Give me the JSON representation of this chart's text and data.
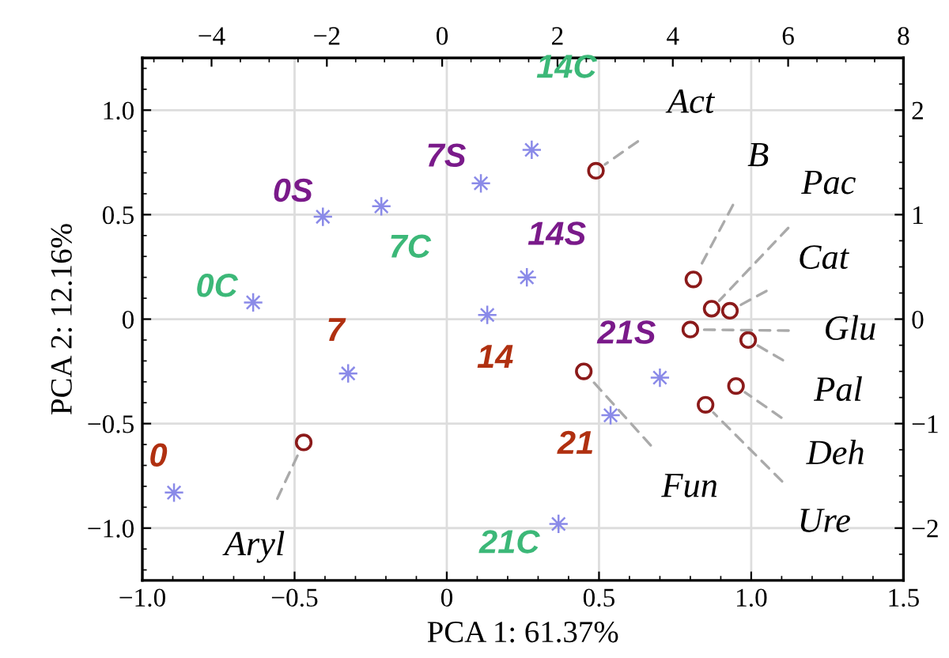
{
  "chart_data": {
    "type": "scatter",
    "xlabel": "PCA 1: 61.37%",
    "ylabel": "PCA 2: 12.16%",
    "xlim": [
      -1.0,
      1.5
    ],
    "xticks": [
      {
        "value": -1.0,
        "label": "−1.0"
      },
      {
        "value": -0.5,
        "label": "−0.5"
      },
      0,
      {
        "value": 0.5,
        "label": "0.5"
      },
      {
        "value": 1.0,
        "label": "1.0"
      },
      {
        "value": 1.5,
        "label": "1.5"
      }
    ],
    "ylim": [
      -1.25,
      1.25
    ],
    "yticks": [
      {
        "value": -1.0,
        "label": "−1.0"
      },
      {
        "value": -0.5,
        "label": "−0.5"
      },
      0,
      {
        "value": 0.5,
        "label": "0.5"
      },
      {
        "value": 1.0,
        "label": "1.0"
      }
    ],
    "x2lim": [
      -5.2,
      8.0
    ],
    "x2ticks": [
      {
        "value": -4,
        "label": "−4"
      },
      {
        "value": -2,
        "label": "−2"
      },
      0,
      2,
      4,
      6,
      8
    ],
    "y2lim": [
      -2.5,
      2.5
    ],
    "y2ticks": [
      {
        "value": -2,
        "label": "−2"
      },
      {
        "value": -1,
        "label": "−1"
      },
      0,
      1,
      2
    ],
    "grid": true,
    "series": [
      {
        "color": "#8b1a1a",
        "marker": "circle",
        "x": [
          -0.47,
          0.49,
          0.81,
          0.87,
          0.93,
          0.8,
          0.99,
          0.95,
          0.85,
          0.45
        ],
        "values": [
          -0.59,
          0.71,
          0.19,
          0.05,
          0.04,
          -0.05,
          -0.1,
          -0.32,
          -0.41,
          -0.25
        ]
      },
      {
        "color": "#8a8ae8",
        "marker": "cross",
        "x": [
          -0.896,
          -0.324,
          0.133,
          0.538,
          -0.636,
          -0.215,
          0.279,
          0.367,
          -0.407,
          0.112,
          0.263,
          0.7
        ],
        "values": [
          -0.83,
          -0.26,
          0.02,
          -0.46,
          0.08,
          0.54,
          0.81,
          -0.98,
          0.49,
          0.65,
          0.2,
          -0.28
        ]
      }
    ],
    "annotations": [
      {
        "text": "Aryl",
        "x": -0.47,
        "y": -0.59
      },
      {
        "text": "Act",
        "x": 0.49,
        "y": 0.71
      },
      {
        "text": "B",
        "x": 0.81,
        "y": 0.19
      },
      {
        "text": "Pac",
        "x": 0.87,
        "y": 0.05
      },
      {
        "text": "Cat",
        "x": 0.93,
        "y": 0.04
      },
      {
        "text": "Glu",
        "x": 0.8,
        "y": -0.05
      },
      {
        "text": "Pal",
        "x": 0.99,
        "y": -0.1
      },
      {
        "text": "Deh",
        "x": 0.95,
        "y": -0.32
      },
      {
        "text": "Ure",
        "x": 0.85,
        "y": -0.41
      },
      {
        "text": "Fun",
        "x": 0.45,
        "y": -0.25
      },
      {
        "text": "0",
        "x": -0.896,
        "y": -0.83
      },
      {
        "text": "7",
        "x": -0.324,
        "y": -0.26
      },
      {
        "text": "14",
        "x": 0.133,
        "y": 0.02
      },
      {
        "text": "21",
        "x": 0.538,
        "y": -0.46
      },
      {
        "text": "0C",
        "x": -0.636,
        "y": 0.08
      },
      {
        "text": "7C",
        "x": -0.215,
        "y": 0.54
      },
      {
        "text": "14C",
        "x": 0.279,
        "y": 0.81
      },
      {
        "text": "21C",
        "x": 0.367,
        "y": -0.98
      },
      {
        "text": "0S",
        "x": -0.407,
        "y": 0.49
      },
      {
        "text": "7S",
        "x": 0.112,
        "y": 0.65
      },
      {
        "text": "14S",
        "x": 0.263,
        "y": 0.2
      },
      {
        "text": "21S",
        "x": 0.7,
        "y": -0.28
      }
    ]
  }
}
